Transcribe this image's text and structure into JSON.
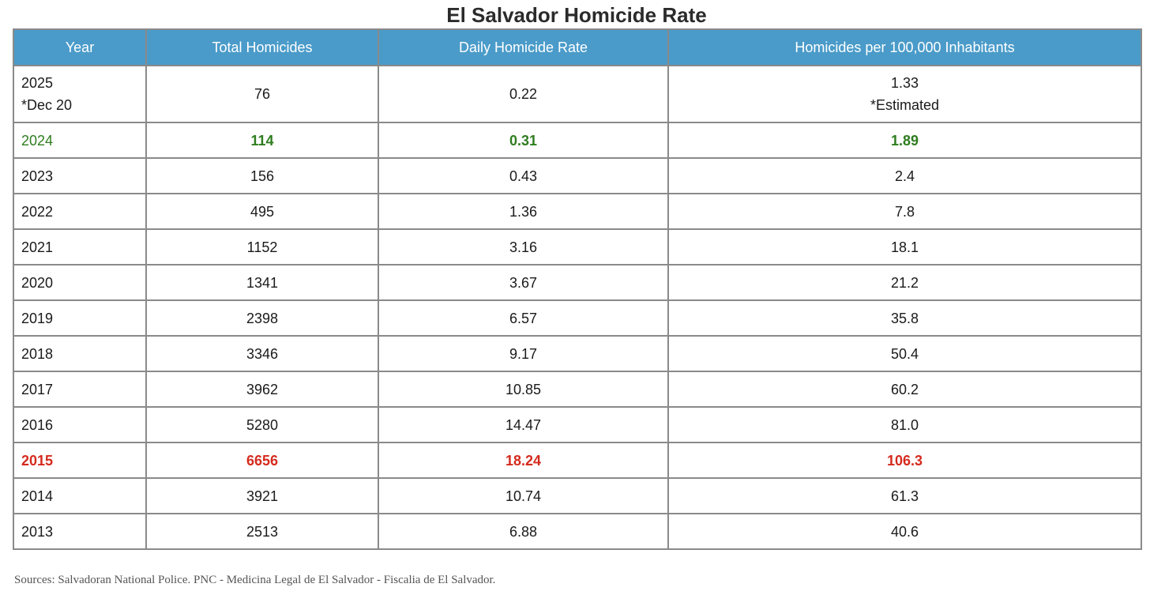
{
  "title": "El Salvador Homicide Rate",
  "columns": [
    "Year",
    "Total Homicides",
    "Daily Homicide Rate",
    "Homicides per 100,000 Inhabitants"
  ],
  "rows": [
    {
      "year": "2025",
      "year_note": "*Dec 20",
      "total": "76",
      "daily": "0.22",
      "per100k": "1.33",
      "per100k_note": "*Estimated"
    },
    {
      "year": "2024",
      "total": "114",
      "daily": "0.31",
      "per100k": "1.89",
      "highlight": "green"
    },
    {
      "year": "2023",
      "total": "156",
      "daily": "0.43",
      "per100k": "2.4"
    },
    {
      "year": "2022",
      "total": "495",
      "daily": "1.36",
      "per100k": "7.8"
    },
    {
      "year": "2021",
      "total": "1152",
      "daily": "3.16",
      "per100k": "18.1"
    },
    {
      "year": "2020",
      "total": "1341",
      "daily": "3.67",
      "per100k": "21.2"
    },
    {
      "year": "2019",
      "total": "2398",
      "daily": "6.57",
      "per100k": "35.8"
    },
    {
      "year": "2018",
      "total": "3346",
      "daily": "9.17",
      "per100k": "50.4"
    },
    {
      "year": "2017",
      "total": "3962",
      "daily": "10.85",
      "per100k": "60.2"
    },
    {
      "year": "2016",
      "total": "5280",
      "daily": "14.47",
      "per100k": "81.0"
    },
    {
      "year": "2015",
      "total": "6656",
      "daily": "18.24",
      "per100k": "106.3",
      "highlight": "red"
    },
    {
      "year": "2014",
      "total": "3921",
      "daily": "10.74",
      "per100k": "61.3"
    },
    {
      "year": "2013",
      "total": "2513",
      "daily": "6.88",
      "per100k": "40.6"
    }
  ],
  "colors": {
    "header_bg": "#4a9bc9",
    "highlight_green": "#2e7d1e",
    "highlight_red": "#d42b1e",
    "border": "#8a8a8a"
  },
  "sources": "Sources: Salvadoran National Police. PNC - Medicina Legal de El Salvador - Fiscalia de El Salvador."
}
